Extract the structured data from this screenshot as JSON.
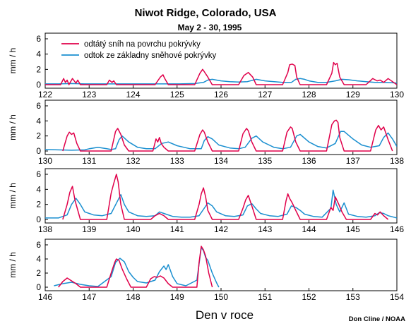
{
  "chart_data": {
    "type": "line",
    "title": "Niwot Ridge, Colorado, USA",
    "subtitle": "May 2 - 30, 1995",
    "xlabel": "Den v roce",
    "ylabel": "mm / h",
    "credit": "Don Cline / NOAA",
    "legend_placement": "top-left",
    "grid": false,
    "colors": {
      "odtaty": "#e0004a",
      "odtok": "#1a8fd0"
    },
    "series_names": [
      "odtátý sníh na povrchu pokrývky",
      "odtok ze základny sněhové pokrývky"
    ],
    "panels": [
      {
        "xlim": [
          122,
          130
        ],
        "ylim": [
          0,
          6
        ],
        "xticks": [
          "122",
          "123",
          "124",
          "125",
          "126",
          "127",
          "128",
          "129",
          "130"
        ],
        "yticks": [
          "0",
          "2",
          "4",
          "6"
        ],
        "series": [
          {
            "name": "odtátý sníh na povrchu pokrývky",
            "color": "#e0004a",
            "x": [
              122.0,
              122.35,
              122.42,
              122.46,
              122.5,
              122.54,
              122.62,
              122.7,
              122.74,
              122.8,
              123.4,
              123.46,
              123.52,
              123.56,
              123.62,
              124.5,
              124.62,
              124.68,
              124.72,
              124.8,
              125.4,
              125.52,
              125.58,
              125.62,
              125.7,
              125.8,
              126.4,
              126.52,
              126.62,
              126.72,
              126.8,
              127.4,
              127.52,
              127.56,
              127.62,
              127.68,
              127.72,
              127.8,
              128.4,
              128.52,
              128.56,
              128.6,
              128.64,
              128.7,
              128.8,
              129.3,
              129.45,
              129.55,
              129.62,
              129.7,
              129.8,
              129.9,
              130.0
            ],
            "y": [
              0,
              0,
              0.8,
              0.3,
              0.6,
              0,
              0.8,
              0.2,
              0.6,
              0,
              0,
              0.6,
              0.3,
              0.5,
              0,
              0,
              1.0,
              1.3,
              0.8,
              0,
              0,
              1.5,
              2.0,
              1.7,
              1.0,
              0,
              0,
              1.2,
              1.6,
              1.0,
              0,
              0,
              1.6,
              2.6,
              2.7,
              2.5,
              1.0,
              0,
              0,
              1.5,
              2.9,
              2.6,
              2.8,
              1.0,
              0,
              0,
              0.8,
              0.5,
              0.6,
              0.3,
              0.8,
              0.4,
              0
            ]
          },
          {
            "name": "odtok ze základny sněhové pokrývky",
            "color": "#1a8fd0",
            "x": [
              122.0,
              122.3,
              122.6,
              122.9,
              123.2,
              123.5,
              123.8,
              124.2,
              124.6,
              125.0,
              125.4,
              125.6,
              125.7,
              125.8,
              126.0,
              126.2,
              126.4,
              126.6,
              126.8,
              127.0,
              127.4,
              127.6,
              127.7,
              127.8,
              127.9,
              128.0,
              128.2,
              128.4,
              128.6,
              128.75,
              128.9,
              129.1,
              129.3,
              129.5,
              129.7,
              129.9,
              130.0
            ],
            "y": [
              0.1,
              0.1,
              0.15,
              0.1,
              0.1,
              0.1,
              0.1,
              0.1,
              0.1,
              0.1,
              0.15,
              0.3,
              0.6,
              0.7,
              0.5,
              0.4,
              0.35,
              0.4,
              0.7,
              0.5,
              0.3,
              0.3,
              0.7,
              0.8,
              0.7,
              0.5,
              0.3,
              0.3,
              0.5,
              0.7,
              0.65,
              0.5,
              0.4,
              0.3,
              0.3,
              0.25,
              0.2
            ]
          }
        ]
      },
      {
        "xlim": [
          130,
          138
        ],
        "ylim": [
          0,
          6
        ],
        "xticks": [
          "130",
          "131",
          "132",
          "133",
          "134",
          "135",
          "136",
          "137",
          "138"
        ],
        "yticks": [
          "0",
          "2",
          "4",
          "6"
        ],
        "series": [
          {
            "name": "odtátý sníh na povrchu pokrývky",
            "color": "#e0004a",
            "x": [
              130.4,
              130.5,
              130.55,
              130.6,
              130.65,
              130.72,
              130.8,
              131.5,
              131.6,
              131.65,
              131.72,
              131.8,
              131.9,
              132.45,
              132.52,
              132.56,
              132.6,
              132.64,
              132.7,
              132.8,
              133.4,
              133.52,
              133.58,
              133.62,
              133.7,
              133.8,
              134.4,
              134.5,
              134.58,
              134.62,
              134.7,
              134.8,
              135.4,
              135.5,
              135.58,
              135.62,
              135.7,
              135.8,
              136.4,
              136.52,
              136.58,
              136.62,
              136.66,
              136.7,
              136.8,
              137.4,
              137.52,
              137.58,
              137.64,
              137.7,
              137.8,
              137.9
            ],
            "y": [
              0,
              2.0,
              2.5,
              2.2,
              2.4,
              1.0,
              0,
              0,
              2.6,
              3.0,
              2.2,
              0.8,
              0,
              0,
              1.6,
              1.2,
              1.8,
              1.0,
              0.5,
              0,
              0,
              2.2,
              2.8,
              2.5,
              1.2,
              0,
              0,
              2.3,
              3.0,
              2.7,
              1.2,
              0,
              0,
              2.5,
              3.2,
              3.0,
              1.2,
              0,
              0,
              3.5,
              4.0,
              4.1,
              3.8,
              1.8,
              0,
              0,
              2.8,
              3.4,
              2.8,
              3.2,
              1.5,
              0
            ]
          },
          {
            "name": "odtok ze základny sněhové pokrývky",
            "color": "#1a8fd0",
            "x": [
              130.0,
              130.3,
              130.6,
              130.9,
              131.0,
              131.2,
              131.4,
              131.5,
              131.6,
              131.68,
              131.75,
              131.9,
              132.1,
              132.3,
              132.5,
              132.65,
              132.8,
              133.0,
              133.3,
              133.55,
              133.62,
              133.7,
              133.8,
              133.95,
              134.2,
              134.4,
              134.55,
              134.7,
              134.8,
              134.95,
              135.2,
              135.4,
              135.58,
              135.72,
              135.8,
              136.0,
              136.2,
              136.4,
              136.6,
              136.72,
              136.8,
              137.0,
              137.2,
              137.4,
              137.6,
              137.7,
              137.8,
              137.9,
              138.0
            ],
            "y": [
              0.2,
              0.15,
              0.1,
              0.15,
              0.3,
              0.5,
              0.3,
              0.2,
              0.3,
              1.5,
              2.0,
              1.2,
              0.5,
              0.3,
              0.3,
              1.0,
              1.2,
              0.7,
              0.3,
              0.3,
              1.4,
              1.9,
              1.6,
              0.8,
              0.4,
              0.3,
              0.5,
              1.7,
              2.0,
              1.2,
              0.5,
              0.3,
              0.5,
              2.0,
              2.2,
              1.2,
              0.6,
              0.4,
              1.0,
              2.6,
              2.6,
              1.6,
              0.8,
              0.5,
              0.7,
              1.8,
              2.4,
              1.6,
              0.6
            ]
          }
        ]
      },
      {
        "xlim": [
          138,
          146
        ],
        "ylim": [
          0,
          6
        ],
        "xticks": [
          "138",
          "139",
          "140",
          "141",
          "142",
          "143",
          "144",
          "145",
          "146"
        ],
        "yticks": [
          "0",
          "2",
          "4",
          "6"
        ],
        "series": [
          {
            "name": "odtátý sníh na povrchu pokrývky",
            "color": "#e0004a",
            "x": [
              138.4,
              138.5,
              138.56,
              138.62,
              138.68,
              138.8,
              139.4,
              139.5,
              139.56,
              139.62,
              139.66,
              139.72,
              139.8,
              140.4,
              140.5,
              140.6,
              140.7,
              140.8,
              141.4,
              141.5,
              141.55,
              141.6,
              141.65,
              141.7,
              141.8,
              142.4,
              142.5,
              142.56,
              142.62,
              142.7,
              142.8,
              143.4,
              143.48,
              143.52,
              143.56,
              143.62,
              143.7,
              143.8,
              144.4,
              144.5,
              144.55,
              144.6,
              144.68,
              144.75,
              144.85,
              145.4,
              145.5,
              145.56,
              145.62,
              145.7,
              145.8
            ],
            "y": [
              0,
              2.0,
              3.6,
              4.4,
              2.5,
              0,
              0,
              3.5,
              4.8,
              6.0,
              5.0,
              2.0,
              0,
              0,
              0.5,
              0.8,
              0.5,
              0,
              0,
              2.0,
              3.4,
              4.2,
              3.0,
              1.2,
              0,
              0,
              1.5,
              2.6,
              3.2,
              1.8,
              0,
              0,
              2.5,
              3.4,
              2.8,
              2.2,
              1.2,
              0,
              0,
              1.6,
              1.2,
              3.0,
              2.0,
              1.0,
              0,
              0,
              0.8,
              0.6,
              1.0,
              0.5,
              0
            ]
          },
          {
            "name": "odtok ze základny sněhové pokrývky",
            "color": "#1a8fd0",
            "x": [
              138.0,
              138.3,
              138.5,
              138.6,
              138.7,
              138.8,
              138.9,
              139.1,
              139.3,
              139.5,
              139.65,
              139.72,
              139.8,
              139.9,
              140.1,
              140.3,
              140.5,
              140.6,
              140.7,
              140.9,
              141.1,
              141.3,
              141.5,
              141.62,
              141.7,
              141.8,
              141.9,
              142.1,
              142.3,
              142.5,
              142.6,
              142.7,
              142.8,
              142.9,
              143.1,
              143.3,
              143.5,
              143.6,
              143.7,
              143.8,
              143.9,
              144.1,
              144.3,
              144.5,
              144.55,
              144.62,
              144.7,
              144.8,
              144.9,
              145.1,
              145.3,
              145.5,
              145.6,
              145.7,
              145.8,
              146.0
            ],
            "y": [
              0.2,
              0.2,
              0.6,
              2.0,
              2.8,
              2.0,
              1.0,
              0.6,
              0.5,
              0.8,
              2.5,
              3.3,
              2.0,
              1.0,
              0.5,
              0.4,
              0.5,
              1.0,
              0.8,
              0.4,
              0.3,
              0.3,
              0.5,
              1.5,
              2.2,
              1.8,
              1.0,
              0.5,
              0.4,
              0.6,
              1.8,
              2.1,
              1.4,
              0.8,
              0.5,
              0.4,
              0.7,
              1.8,
              1.6,
              1.2,
              0.7,
              0.4,
              0.3,
              1.5,
              3.9,
              2.0,
              1.0,
              2.2,
              0.7,
              0.4,
              0.3,
              0.5,
              0.9,
              0.8,
              0.5,
              0.2
            ]
          }
        ]
      },
      {
        "xlim": [
          146,
          154
        ],
        "ylim": [
          0,
          6
        ],
        "xticks": [
          "146",
          "147",
          "148",
          "149",
          "150",
          "151",
          "152",
          "153",
          "154"
        ],
        "yticks": [
          "0",
          "2",
          "4",
          "6"
        ],
        "series": [
          {
            "name": "odtátý sníh na povrchu pokrývky",
            "color": "#e0004a",
            "x": [
              146.3,
              146.4,
              146.5,
              146.6,
              146.7,
              146.8,
              147.4,
              147.5,
              147.58,
              147.62,
              147.68,
              147.75,
              147.85,
              147.95,
              148.3,
              148.4,
              148.48,
              148.55,
              148.62,
              148.7,
              148.8,
              148.9,
              149.45,
              149.5,
              149.55,
              149.6,
              149.65,
              149.72,
              149.8
            ],
            "y": [
              0,
              0.8,
              1.3,
              0.9,
              0.5,
              0,
              0,
              2.0,
              3.5,
              4.0,
              3.8,
              2.6,
              1.2,
              0,
              0,
              1.2,
              1.5,
              1.4,
              1.6,
              1.3,
              0.5,
              0,
              0,
              3.5,
              5.8,
              5.3,
              4.4,
              2.0,
              0
            ]
          },
          {
            "name": "odtok ze základny sněhové pokrývky",
            "color": "#1a8fd0",
            "x": [
              146.2,
              146.4,
              146.6,
              146.8,
              147.0,
              147.2,
              147.5,
              147.6,
              147.7,
              147.8,
              147.9,
              148.0,
              148.1,
              148.3,
              148.5,
              148.6,
              148.7,
              148.75,
              148.8,
              148.9,
              149.0,
              149.2,
              149.45,
              149.55,
              149.6,
              149.65,
              149.7,
              149.8,
              149.9,
              149.95
            ],
            "y": [
              0.2,
              0.5,
              0.7,
              0.4,
              0.2,
              0.1,
              1.5,
              3.5,
              4.1,
              3.6,
              2.2,
              1.4,
              0.8,
              0.6,
              1.0,
              2.2,
              3.0,
              2.5,
              3.2,
              1.5,
              0.5,
              0.2,
              1.0,
              5.6,
              5.2,
              4.2,
              3.8,
              2.0,
              0.6,
              0
            ]
          }
        ]
      }
    ]
  }
}
